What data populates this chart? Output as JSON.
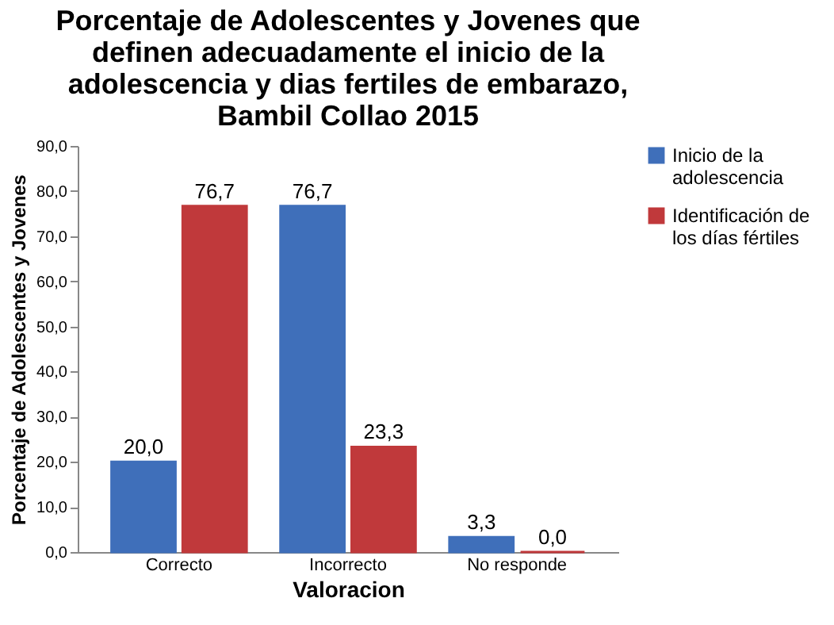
{
  "chart_data": {
    "type": "bar",
    "title": "Porcentaje de Adolescentes y Jovenes que definen adecuadamente el inicio de la adolescencia y dias fertiles de embarazo, Bambil Collao 2015",
    "xlabel": "Valoracion",
    "ylabel": "Porcentaje de Adolescentes y Jovenes",
    "categories": [
      "Correcto",
      "Incorrecto",
      "No responde"
    ],
    "series": [
      {
        "name": "Inicio de la adolescencia",
        "color": "#3f6fba",
        "values": [
          20.0,
          76.7,
          3.3
        ],
        "value_labels": [
          "20,0",
          "76,7",
          "3,3"
        ]
      },
      {
        "name": "Identificación de los días fértiles",
        "color": "#c0393b",
        "values": [
          76.7,
          23.3,
          0.0
        ],
        "value_labels": [
          "76,7",
          "23,3",
          "0,0"
        ]
      }
    ],
    "ylim": [
      0,
      90
    ],
    "yticks": [
      {
        "value": 0,
        "label": "0,0"
      },
      {
        "value": 10,
        "label": "10,0"
      },
      {
        "value": 20,
        "label": "20,0"
      },
      {
        "value": 30,
        "label": "30,0"
      },
      {
        "value": 40,
        "label": "40,0"
      },
      {
        "value": 50,
        "label": "50,0"
      },
      {
        "value": 60,
        "label": "60,0"
      },
      {
        "value": 70,
        "label": "70,0"
      },
      {
        "value": 80,
        "label": "80,0"
      },
      {
        "value": 90,
        "label": "90,0"
      }
    ],
    "grid": false,
    "legend": "right"
  }
}
